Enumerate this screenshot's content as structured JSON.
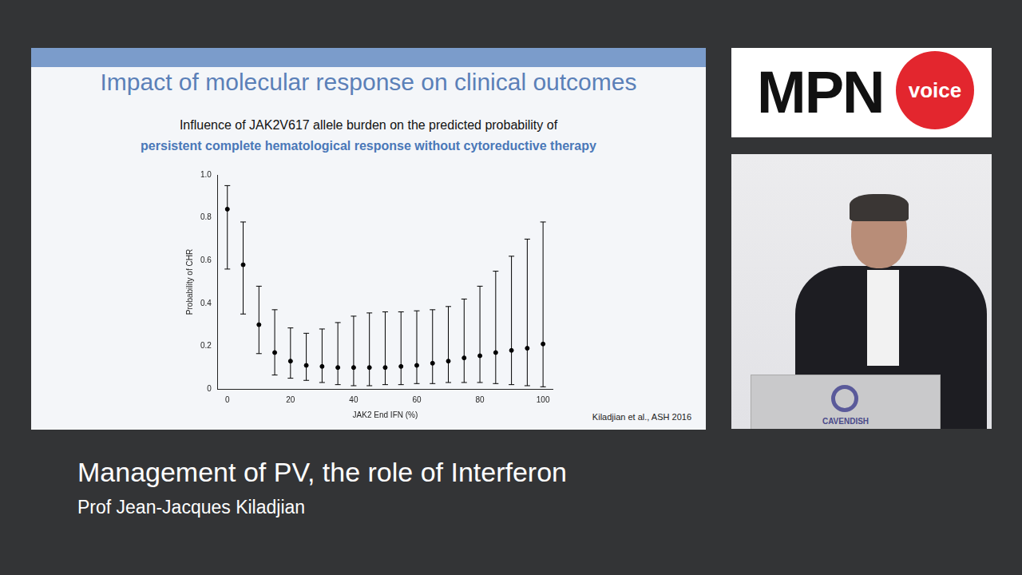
{
  "slide": {
    "title": "Impact of molecular response on clinical outcomes",
    "citation": "Kiladjian et al., ASH 2016"
  },
  "logo": {
    "text": "MPN",
    "badge": "voice"
  },
  "speaker_panel": {
    "podium_text": "CAVENDISH"
  },
  "caption": {
    "title": "Management of PV, the role of Interferon",
    "speaker": "Prof Jean-Jacques Kiladjian"
  },
  "chart_data": {
    "type": "scatter",
    "title": "Influence of JAK2V617 allele burden on the predicted probability of",
    "subtitle": "persistent complete hematological response without cytoreductive therapy",
    "x_label": "JAK2 End IFN (%)",
    "y_label": "Probability of CHR",
    "x": [
      0,
      5,
      10,
      15,
      20,
      25,
      30,
      35,
      40,
      45,
      50,
      55,
      60,
      65,
      70,
      75,
      80,
      85,
      90,
      95,
      100
    ],
    "values": [
      0.84,
      0.58,
      0.3,
      0.17,
      0.13,
      0.11,
      0.105,
      0.1,
      0.1,
      0.1,
      0.1,
      0.105,
      0.11,
      0.12,
      0.13,
      0.145,
      0.155,
      0.17,
      0.18,
      0.19,
      0.21
    ],
    "error_low": [
      0.56,
      0.35,
      0.165,
      0.065,
      0.05,
      0.04,
      0.03,
      0.02,
      0.015,
      0.015,
      0.02,
      0.02,
      0.025,
      0.025,
      0.03,
      0.03,
      0.03,
      0.025,
      0.02,
      0.015,
      0.01
    ],
    "error_high": [
      0.95,
      0.78,
      0.48,
      0.37,
      0.285,
      0.26,
      0.28,
      0.31,
      0.34,
      0.355,
      0.36,
      0.36,
      0.365,
      0.37,
      0.385,
      0.42,
      0.48,
      0.55,
      0.62,
      0.7,
      0.78
    ],
    "xlim": [
      -3,
      103
    ],
    "ylim": [
      0,
      1
    ],
    "xticks": [
      0,
      20,
      40,
      60,
      80,
      100
    ],
    "yticks": [
      0,
      0.2,
      0.4,
      0.6,
      0.8,
      {
        "value": 1,
        "label": "1.0"
      }
    ],
    "grid": false,
    "color": "#000000",
    "marker": "circle"
  }
}
